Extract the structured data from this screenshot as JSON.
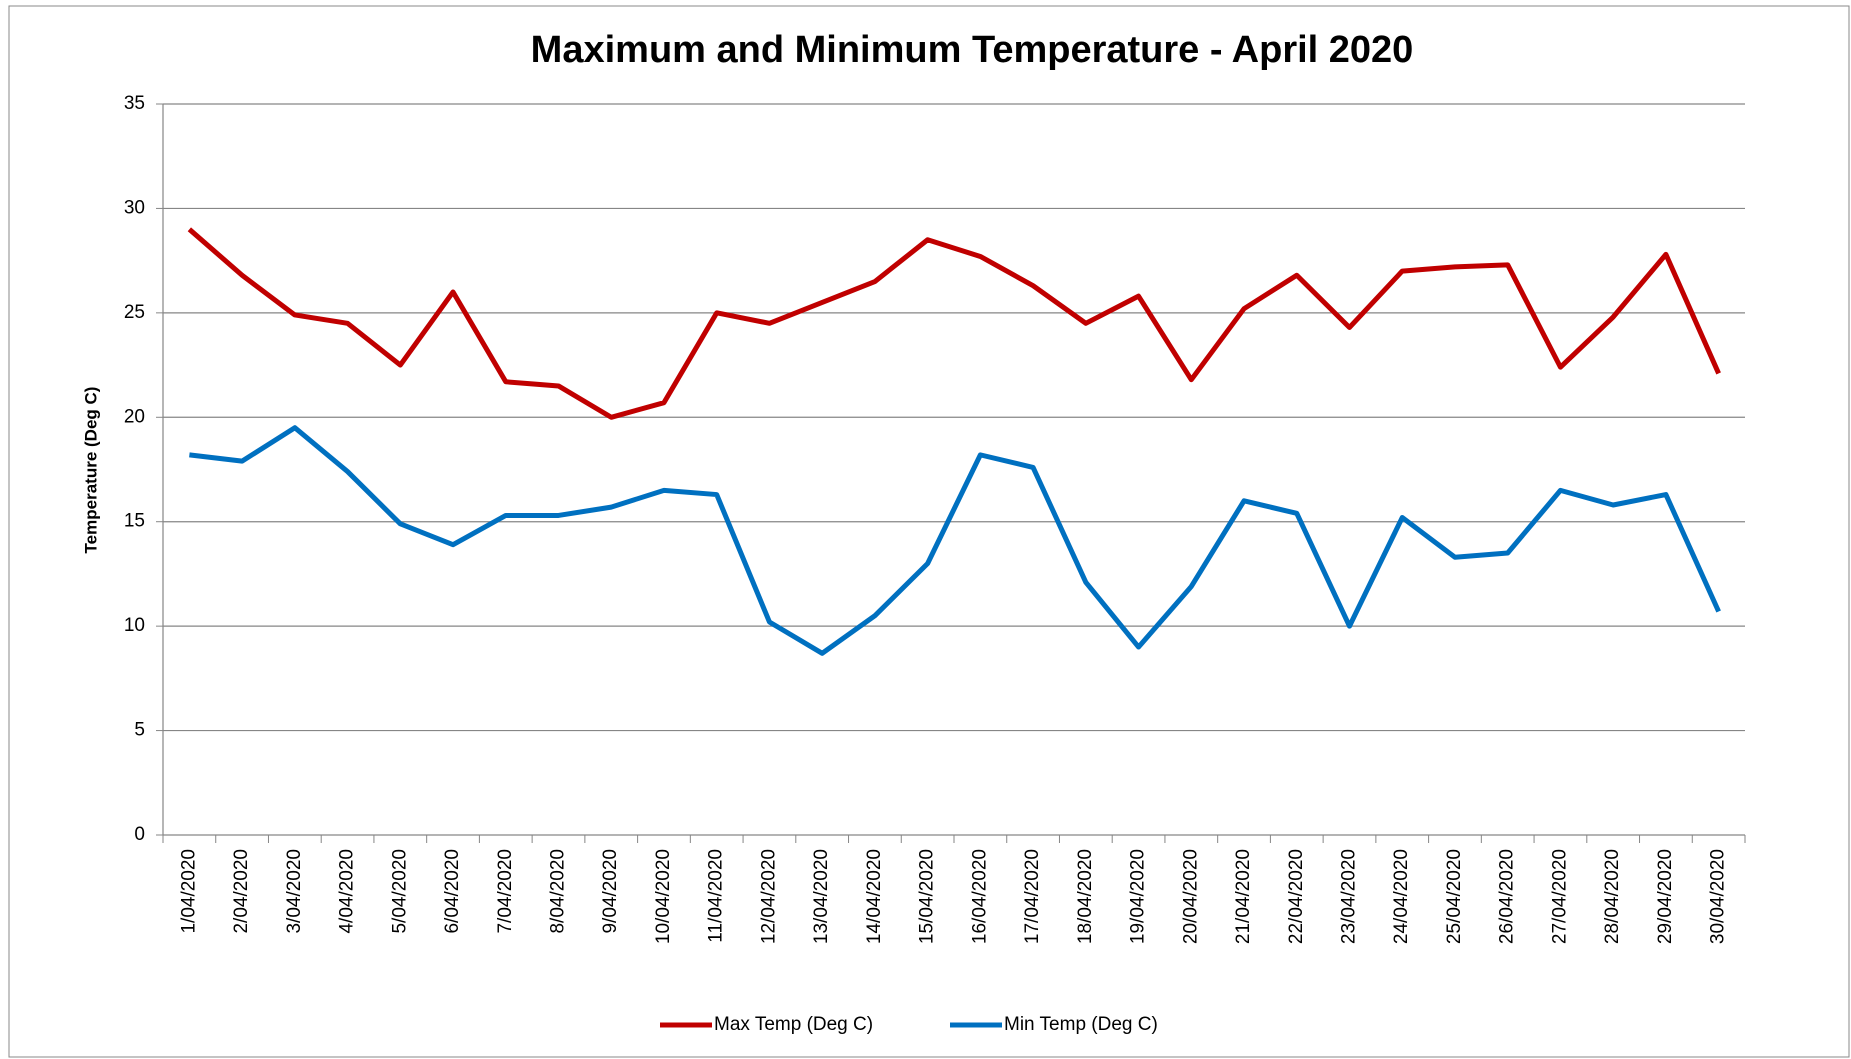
{
  "chart_data": {
    "type": "line",
    "title": "Maximum and Minimum Temperature - April 2020",
    "y_label": "Temperature (Deg C)",
    "categories": [
      "1/04/2020",
      "2/04/2020",
      "3/04/2020",
      "4/04/2020",
      "5/04/2020",
      "6/04/2020",
      "7/04/2020",
      "8/04/2020",
      "9/04/2020",
      "10/04/2020",
      "11/04/2020",
      "12/04/2020",
      "13/04/2020",
      "14/04/2020",
      "15/04/2020",
      "16/04/2020",
      "17/04/2020",
      "18/04/2020",
      "19/04/2020",
      "20/04/2020",
      "21/04/2020",
      "22/04/2020",
      "23/04/2020",
      "24/04/2020",
      "25/04/2020",
      "26/04/2020",
      "27/04/2020",
      "28/04/2020",
      "29/04/2020",
      "30/04/2020"
    ],
    "series": [
      {
        "name": "Max Temp (Deg C)",
        "color": "#c00000",
        "values": [
          29.0,
          26.8,
          24.9,
          24.5,
          22.5,
          26.0,
          21.7,
          21.5,
          20.0,
          20.7,
          25.0,
          24.5,
          25.5,
          26.5,
          28.5,
          27.7,
          26.3,
          24.5,
          25.8,
          21.8,
          25.2,
          26.8,
          24.3,
          27.0,
          27.2,
          27.3,
          22.4,
          24.8,
          27.8,
          22.1
        ]
      },
      {
        "name": "Min Temp (Deg C)",
        "color": "#0070c0",
        "values": [
          18.2,
          17.9,
          19.5,
          17.4,
          14.9,
          13.9,
          15.3,
          15.3,
          15.7,
          16.5,
          16.3,
          10.2,
          8.7,
          10.5,
          13.0,
          18.2,
          17.6,
          12.1,
          9.0,
          11.9,
          16.0,
          15.4,
          10.0,
          15.2,
          13.3,
          13.5,
          16.5,
          15.8,
          16.3,
          10.7
        ]
      }
    ],
    "ylim": [
      0,
      35
    ],
    "yticks": [
      0,
      5,
      10,
      15,
      20,
      25,
      30,
      35
    ],
    "grid": true,
    "legend": "bottom"
  }
}
